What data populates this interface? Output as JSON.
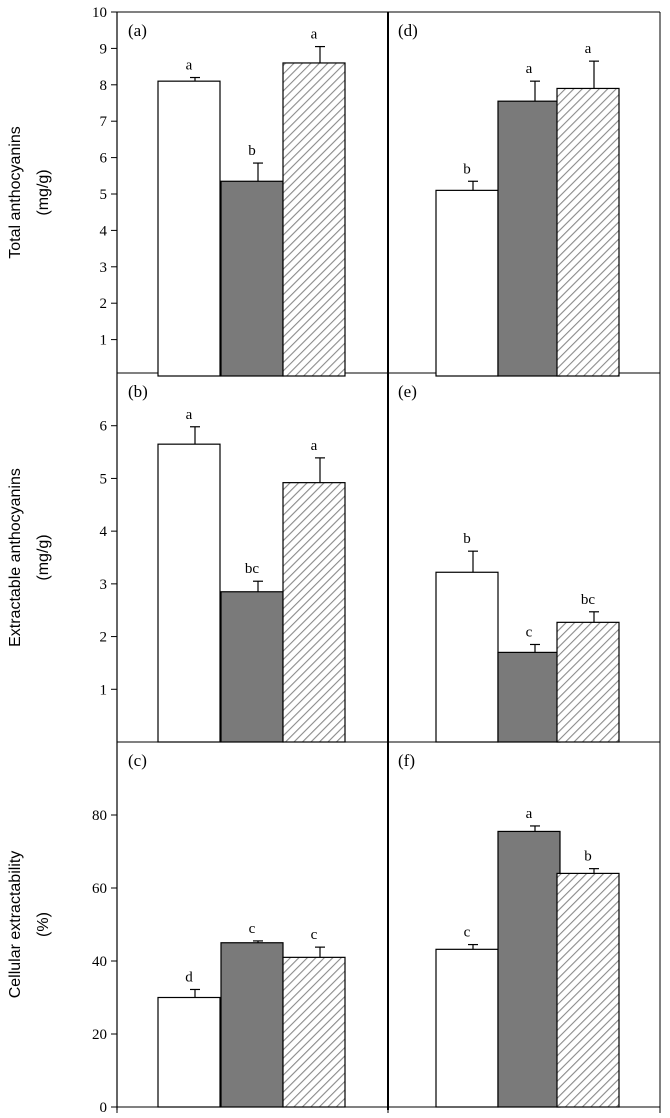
{
  "chart_data": {
    "type": "bar",
    "series_styles": [
      {
        "fill": "#ffffff",
        "pattern": "none"
      },
      {
        "fill": "#7a7a7a",
        "pattern": "none"
      },
      {
        "fill": "#ffffff",
        "pattern": "diagonal-hatch"
      }
    ],
    "rows": [
      {
        "ylabel": [
          "Total anthocyanins",
          "(mg/g)"
        ],
        "ylim": [
          0,
          10
        ],
        "yticks": [
          1,
          2,
          3,
          4,
          5,
          6,
          7,
          8,
          9,
          10
        ]
      },
      {
        "ylabel": [
          "Extractable anthocyanins",
          "(mg/g)"
        ],
        "ylim": [
          0,
          7
        ],
        "yticks": [
          1,
          2,
          3,
          4,
          5,
          6
        ]
      },
      {
        "ylabel": [
          "Cellular extractability",
          "(%)"
        ],
        "ylim": [
          0,
          100
        ],
        "yticks": [
          0,
          20,
          40,
          60,
          80
        ]
      }
    ],
    "panels": [
      {
        "label": "(a)",
        "row": 0,
        "col": 0,
        "values": [
          8.1,
          5.35,
          8.6
        ],
        "errors": [
          0.1,
          0.5,
          0.45
        ],
        "letters": [
          "a",
          "b",
          "a"
        ]
      },
      {
        "label": "(d)",
        "row": 0,
        "col": 1,
        "values": [
          5.1,
          7.55,
          7.9
        ],
        "errors": [
          0.25,
          0.55,
          0.75
        ],
        "letters": [
          "b",
          "a",
          "a"
        ]
      },
      {
        "label": "(b)",
        "row": 1,
        "col": 0,
        "values": [
          5.65,
          2.85,
          4.92
        ],
        "errors": [
          0.33,
          0.2,
          0.47
        ],
        "letters": [
          "a",
          "bc",
          "a"
        ]
      },
      {
        "label": "(e)",
        "row": 1,
        "col": 1,
        "values": [
          3.22,
          1.7,
          2.27
        ],
        "errors": [
          0.4,
          0.15,
          0.2
        ],
        "letters": [
          "b",
          "c",
          "bc"
        ]
      },
      {
        "label": "(c)",
        "row": 2,
        "col": 0,
        "values": [
          30,
          45,
          41
        ],
        "errors": [
          2.2,
          0.5,
          2.8
        ],
        "letters": [
          "d",
          "c",
          "c"
        ]
      },
      {
        "label": "(f)",
        "row": 2,
        "col": 1,
        "values": [
          43.2,
          75.5,
          64
        ],
        "errors": [
          1.3,
          1.5,
          1.3
        ],
        "letters": [
          "c",
          "a",
          "b"
        ]
      }
    ]
  }
}
